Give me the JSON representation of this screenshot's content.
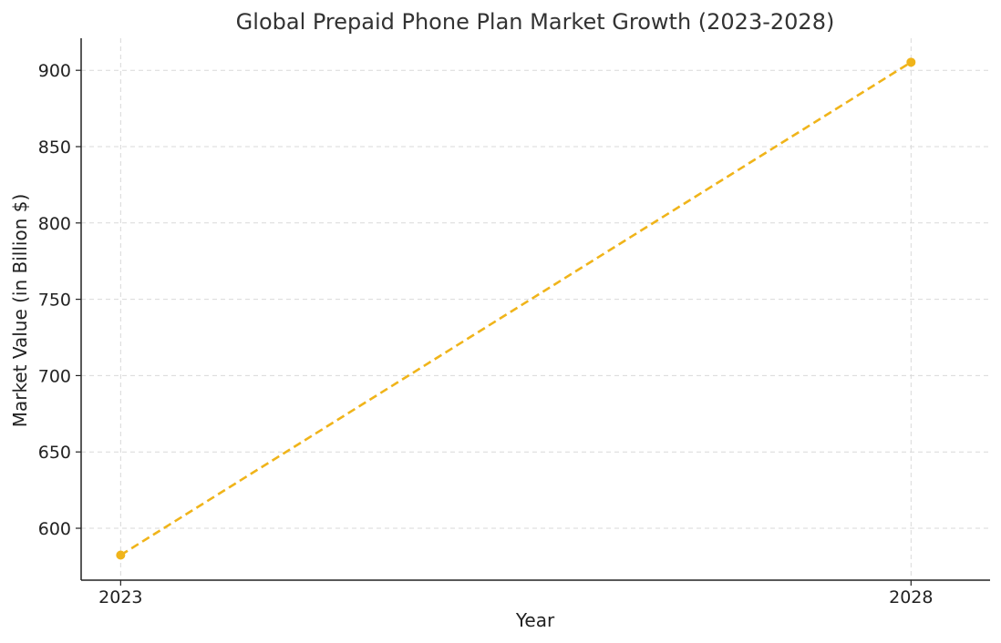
{
  "chart_data": {
    "type": "line",
    "title": "Global Prepaid Phone Plan Market Growth (2023-2028)",
    "xlabel": "Year",
    "ylabel": "Market Value (in Billion $)",
    "x": [
      2023,
      2028
    ],
    "x_tick_labels": [
      "2023",
      "2028"
    ],
    "xlim": [
      2022.75,
      2028.5
    ],
    "ylim": [
      566,
      921
    ],
    "y_ticks": [
      600,
      650,
      700,
      750,
      800,
      850,
      900
    ],
    "grid": true,
    "legend": "none",
    "series": [
      {
        "values": [
          582.4,
          905.3
        ],
        "color": "#f0b41a",
        "line_style": "dashed",
        "marker": "circle"
      }
    ]
  }
}
